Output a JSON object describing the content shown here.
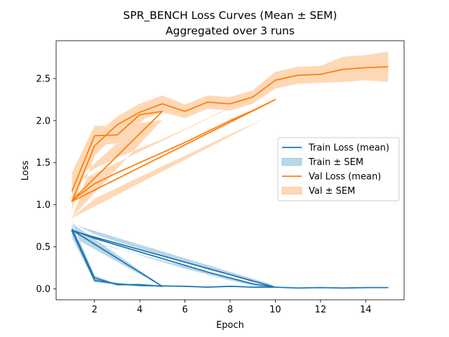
{
  "chart_data": {
    "type": "line",
    "title": "SPR_BENCH Loss Curves (Mean ± SEM)",
    "subtitle": "Aggregated over 3 runs",
    "xlabel": "Epoch",
    "ylabel": "Loss",
    "xlim": [
      0.3,
      15.7
    ],
    "ylim": [
      -0.13,
      2.95
    ],
    "xticks": [
      2,
      4,
      6,
      8,
      10,
      12,
      14
    ],
    "yticks": [
      0.0,
      0.5,
      1.0,
      1.5,
      2.0,
      2.5
    ],
    "ytick_labels": [
      "0.0",
      "0.5",
      "1.0",
      "1.5",
      "2.0",
      "2.5"
    ],
    "grid": false,
    "legend_position": "center-right",
    "legend": [
      {
        "label": "Train Loss (mean)",
        "kind": "line",
        "color": "#1f77b4"
      },
      {
        "label": "Train ± SEM",
        "kind": "band",
        "color": "#1f77b4"
      },
      {
        "label": "Val Loss (mean)",
        "kind": "line",
        "color": "#ff7f0e"
      },
      {
        "label": "Val ± SEM",
        "kind": "band",
        "color": "#ff7f0e"
      }
    ],
    "series": [
      {
        "name": "Train Loss (mean)",
        "band_name": "Train ± SEM",
        "color": "#1f77b4",
        "x": [
          1,
          2,
          3,
          4,
          5,
          1,
          2,
          3,
          4,
          5,
          6,
          7,
          8,
          9,
          10,
          1,
          2,
          3,
          4,
          5,
          6,
          7,
          8,
          9,
          10,
          11,
          12,
          13,
          14,
          15
        ],
        "y": [
          0.71,
          0.13,
          0.05,
          0.05,
          0.03,
          0.7,
          0.6,
          0.52,
          0.44,
          0.36,
          0.28,
          0.2,
          0.13,
          0.06,
          0.02,
          0.69,
          0.1,
          0.06,
          0.04,
          0.035,
          0.03,
          0.02,
          0.03,
          0.02,
          0.02,
          0.01,
          0.015,
          0.01,
          0.015,
          0.015
        ],
        "sem": [
          0.08,
          0.03,
          0.01,
          0.01,
          0.005,
          0.08,
          0.05,
          0.04,
          0.04,
          0.04,
          0.04,
          0.03,
          0.03,
          0.02,
          0.02,
          0.08,
          0.02,
          0.01,
          0.01,
          0.005,
          0.005,
          0.005,
          0.005,
          0.005,
          0.005,
          0.005,
          0.005,
          0.005,
          0.005,
          0.005
        ]
      },
      {
        "name": "Val Loss (mean)",
        "band_name": "Val ± SEM",
        "color": "#ff7f0e",
        "x": [
          1,
          2,
          3,
          4,
          5,
          1,
          2,
          3,
          4,
          5,
          6,
          7,
          8,
          9,
          10,
          1,
          2,
          3,
          4,
          5,
          6,
          7,
          8,
          9,
          10,
          11,
          12,
          13,
          14,
          15
        ],
        "y": [
          1.16,
          1.82,
          1.83,
          2.07,
          2.11,
          1.05,
          1.25,
          1.38,
          1.5,
          1.62,
          1.74,
          1.87,
          2.0,
          2.12,
          2.25,
          1.04,
          1.7,
          1.95,
          2.1,
          2.2,
          2.11,
          2.22,
          2.2,
          2.28,
          2.48,
          2.54,
          2.55,
          2.61,
          2.63,
          2.64
        ],
        "sem": [
          0.22,
          0.12,
          0.1,
          0.1,
          0.1,
          0.2,
          0.18,
          0.18,
          0.17,
          0.16,
          0.16,
          0.16,
          0.16,
          0.16,
          0.16,
          0.2,
          0.12,
          0.1,
          0.1,
          0.1,
          0.08,
          0.08,
          0.08,
          0.08,
          0.1,
          0.1,
          0.1,
          0.15,
          0.15,
          0.18
        ]
      }
    ]
  }
}
